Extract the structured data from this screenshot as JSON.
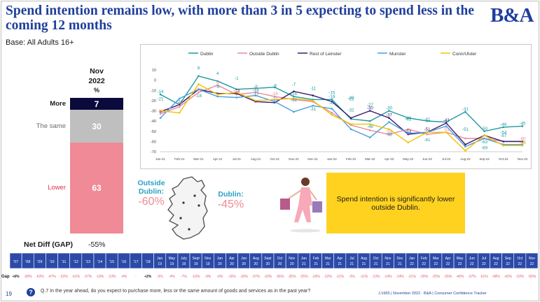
{
  "title": "Spend intention remains low, with more than 3 in 5 expecting to spend less in the coming 12 months",
  "base": "Base: All Adults 16+",
  "logo": "B&A",
  "stack": {
    "period": "Nov",
    "year": "2022",
    "unit": "%",
    "segments": [
      {
        "label": "More",
        "value": 7,
        "color": "#0a0a3c",
        "label_color": "#1a1a1a"
      },
      {
        "label": "The same",
        "value": 30,
        "color": "#bfbfbf",
        "label_color": "#6b6b6b"
      },
      {
        "label": "Lower",
        "value": 63,
        "color": "#f08a96",
        "label_color": "#e0314b"
      }
    ],
    "net_label": "Net Diff (GAP)",
    "net_value": "-55%"
  },
  "map": {
    "outside_dublin_label": "Outside Dublin:",
    "outside_dublin_value": "-60%",
    "dublin_label": "Dublin:",
    "dublin_value": "-45%",
    "label_color": "#2aa0c8",
    "value_color": "#f08a96"
  },
  "callout": "Spend intention is significantly lower outside Dublin.",
  "chart_data": {
    "type": "line",
    "categories": [
      "Jan-21",
      "Feb-21",
      "Mar-21",
      "Apr-21",
      "Jul-21",
      "Aug-21",
      "Oct-21",
      "Nov-21",
      "Dec-21",
      "Jan-22",
      "Feb-22",
      "Mar-22",
      "Apr-22",
      "May-22",
      "Jun-22",
      "Jul-22",
      "Aug-22",
      "Sep-22",
      "Oct-22",
      "Nov-22"
    ],
    "ylim": [
      -70,
      10
    ],
    "yticks": [
      10,
      0,
      -10,
      -20,
      -30,
      -40,
      -50,
      -60,
      -70
    ],
    "legend_position": "top",
    "series": [
      {
        "name": "Dublin",
        "color": "#1e9aa0",
        "values": [
          -14,
          -24,
          4,
          -1,
          -9,
          -8,
          -7,
          -16,
          -19,
          -19,
          -38,
          -40,
          -30,
          -37,
          -40,
          -41,
          -31,
          -50,
          -46,
          -45
        ]
      },
      {
        "name": "Outside Dublin",
        "color": "#e88a9a",
        "values": [
          -33,
          -26,
          -12,
          -5,
          -14,
          -12,
          -16,
          -19,
          -21,
          -32,
          -44,
          -49,
          -53,
          -48,
          -53,
          -51,
          -57,
          -57,
          -60,
          -60
        ]
      },
      {
        "name": "Rest of Leinster",
        "color": "#3a1a6e",
        "values": [
          -31,
          -24,
          -9,
          -13,
          -13,
          -21,
          -22,
          -11,
          -15,
          -21,
          -37,
          -30,
          -37,
          -53,
          -51,
          -42,
          -63,
          -54,
          -60,
          -60
        ]
      },
      {
        "name": "Munster",
        "color": "#4a9ee0",
        "values": [
          -37,
          -18,
          -9,
          -16,
          -17,
          -15,
          -21,
          -31,
          -25,
          -28,
          -48,
          -56,
          -41,
          -52,
          -51,
          -45,
          -65,
          -57,
          -63,
          -63
        ]
      },
      {
        "name": "Conn/Ulster",
        "color": "#f2c200",
        "values": [
          -30,
          -32,
          -4,
          -14,
          -12,
          -20,
          -19,
          -18,
          -20,
          -34,
          -43,
          -43,
          -48,
          -61,
          -51,
          -51,
          -69,
          -54,
          -64,
          -64
        ]
      }
    ],
    "data_labels": [
      {
        "text": "-21",
        "x": 0,
        "y": -21
      },
      {
        "text": "-14",
        "x": 0,
        "y": -14
      },
      {
        "text": "-33",
        "x": 0,
        "y": -33
      },
      {
        "text": "-24",
        "x": 1,
        "y": -24
      },
      {
        "text": "-26",
        "x": 1,
        "y": -26
      },
      {
        "text": "9",
        "x": 2,
        "y": 9
      },
      {
        "text": "-12",
        "x": 2,
        "y": -12
      },
      {
        "text": "-18",
        "x": 2,
        "y": -18
      },
      {
        "text": "4",
        "x": 3,
        "y": 4
      },
      {
        "text": "-9",
        "x": 3,
        "y": -9
      },
      {
        "text": "-5",
        "x": 3,
        "y": -5
      },
      {
        "text": "-1",
        "x": 4,
        "y": -1
      },
      {
        "text": "-13",
        "x": 4,
        "y": -13
      },
      {
        "text": "-14",
        "x": 4,
        "y": -14
      },
      {
        "text": "-9",
        "x": 5,
        "y": -9
      },
      {
        "text": "-13",
        "x": 5,
        "y": -13
      },
      {
        "text": "-12",
        "x": 5,
        "y": -12
      },
      {
        "text": "-17",
        "x": 5,
        "y": -17
      },
      {
        "text": "-8",
        "x": 6,
        "y": -8
      },
      {
        "text": "-21",
        "x": 6,
        "y": -21
      },
      {
        "text": "-16",
        "x": 6,
        "y": -16
      },
      {
        "text": "-7",
        "x": 7,
        "y": -7
      },
      {
        "text": "-16",
        "x": 7,
        "y": -16
      },
      {
        "text": "-22",
        "x": 7,
        "y": -22
      },
      {
        "text": "-11",
        "x": 8,
        "y": -11
      },
      {
        "text": "-31",
        "x": 8,
        "y": -31
      },
      {
        "text": "-15",
        "x": 9,
        "y": -15
      },
      {
        "text": "-19",
        "x": 9,
        "y": -19
      },
      {
        "text": "-25",
        "x": 9,
        "y": -25
      },
      {
        "text": "-20",
        "x": 10,
        "y": -20
      },
      {
        "text": "-21",
        "x": 10,
        "y": -21
      },
      {
        "text": "-32",
        "x": 10,
        "y": -32
      },
      {
        "text": "-30",
        "x": 11,
        "y": -30
      },
      {
        "text": "-27",
        "x": 11,
        "y": -27
      },
      {
        "text": "-48",
        "x": 11,
        "y": -48
      },
      {
        "text": "-37",
        "x": 12,
        "y": -37
      },
      {
        "text": "-30",
        "x": 12,
        "y": -30
      },
      {
        "text": "-53",
        "x": 12,
        "y": -53
      },
      {
        "text": "-56",
        "x": 12,
        "y": -56
      },
      {
        "text": "-40",
        "x": 13,
        "y": -40
      },
      {
        "text": "-41",
        "x": 13,
        "y": -41
      },
      {
        "text": "-53",
        "x": 13,
        "y": -53
      },
      {
        "text": "-41",
        "x": 14,
        "y": -41
      },
      {
        "text": "-51",
        "x": 14,
        "y": -51
      },
      {
        "text": "-61",
        "x": 14,
        "y": -61
      },
      {
        "text": "-42",
        "x": 15,
        "y": -42
      },
      {
        "text": "-51",
        "x": 15,
        "y": -51
      },
      {
        "text": "-31",
        "x": 16,
        "y": -31
      },
      {
        "text": "-51",
        "x": 16,
        "y": -51
      },
      {
        "text": "-50",
        "x": 17,
        "y": -50
      },
      {
        "text": "-63",
        "x": 17,
        "y": -63
      },
      {
        "text": "-69",
        "x": 17,
        "y": -69
      },
      {
        "text": "-54",
        "x": 18,
        "y": -54
      },
      {
        "text": "-46",
        "x": 18,
        "y": -46
      },
      {
        "text": "-57",
        "x": 18,
        "y": -57
      },
      {
        "text": "-45",
        "x": 19,
        "y": -45
      },
      {
        "text": "-60",
        "x": 19,
        "y": -60
      },
      {
        "text": "-64",
        "x": 19,
        "y": -64
      }
    ]
  },
  "timeline": {
    "years": [
      "'07",
      "'08",
      "'09",
      "'10",
      "'11",
      "'12",
      "'13",
      "'14",
      "'15",
      "'16",
      "'17",
      "'18"
    ],
    "months": [
      [
        "Jan",
        "19"
      ],
      [
        "May",
        "19"
      ],
      [
        "July",
        "19"
      ],
      [
        "Sept",
        "19"
      ],
      [
        "Nov",
        "19"
      ],
      [
        "Jan",
        "20"
      ],
      [
        "Apr",
        "20"
      ],
      [
        "Jun",
        "20"
      ],
      [
        "Aug",
        "20"
      ],
      [
        "Sept",
        "20"
      ],
      [
        "Oct",
        "20"
      ],
      [
        "Nov",
        "20"
      ],
      [
        "Jan",
        "21"
      ],
      [
        "Feb",
        "21"
      ],
      [
        "Mar",
        "21"
      ],
      [
        "Apr",
        "21"
      ],
      [
        "Jul",
        "21"
      ],
      [
        "Aug",
        "21"
      ],
      [
        "Oct",
        "21"
      ],
      [
        "Nov",
        "21"
      ],
      [
        "Dec",
        "21"
      ],
      [
        "Jan",
        "22"
      ],
      [
        "Feb",
        "22"
      ],
      [
        "Mar",
        "22"
      ],
      [
        "Apr",
        "22"
      ],
      [
        "May",
        "22"
      ],
      [
        "Jun",
        "22"
      ],
      [
        "Jul",
        "22"
      ],
      [
        "Aug",
        "22"
      ],
      [
        "Sep",
        "22"
      ],
      [
        "Oct",
        "22"
      ],
      [
        "Nov",
        "22"
      ]
    ],
    "gap_label": "Gap",
    "gap_years": [
      "+6%",
      "-39%",
      "-63%",
      "-47%",
      "-52%",
      "-61%",
      "-37%",
      "-19%",
      "-13%",
      "-4%",
      "-",
      "+2%"
    ],
    "gap_months": [
      "-3%",
      "-4%",
      "-7%",
      "-16%",
      "-9%",
      "-6%",
      "-16%",
      "-30%",
      "-37%",
      "-33%",
      "-36%",
      "-35%",
      "-25%",
      "-29%",
      "-22%",
      "-11%",
      "-2%",
      "-11%",
      "-13%",
      "-14%",
      "-14%",
      "-21%",
      "-29%",
      "-25%",
      "-35%",
      "-46%",
      "-37%",
      "-61%",
      "-48%",
      "-42%",
      "-53%",
      "-55%"
    ]
  },
  "footer": {
    "page": "19",
    "icon": "question-icon",
    "question": "Q.7 In the year ahead, do you expect to purchase more, less or the same amount of goods and services as in the past year?",
    "source": "J.1665 | November 2022 · B&A | Consumer Confidence Tracker"
  }
}
